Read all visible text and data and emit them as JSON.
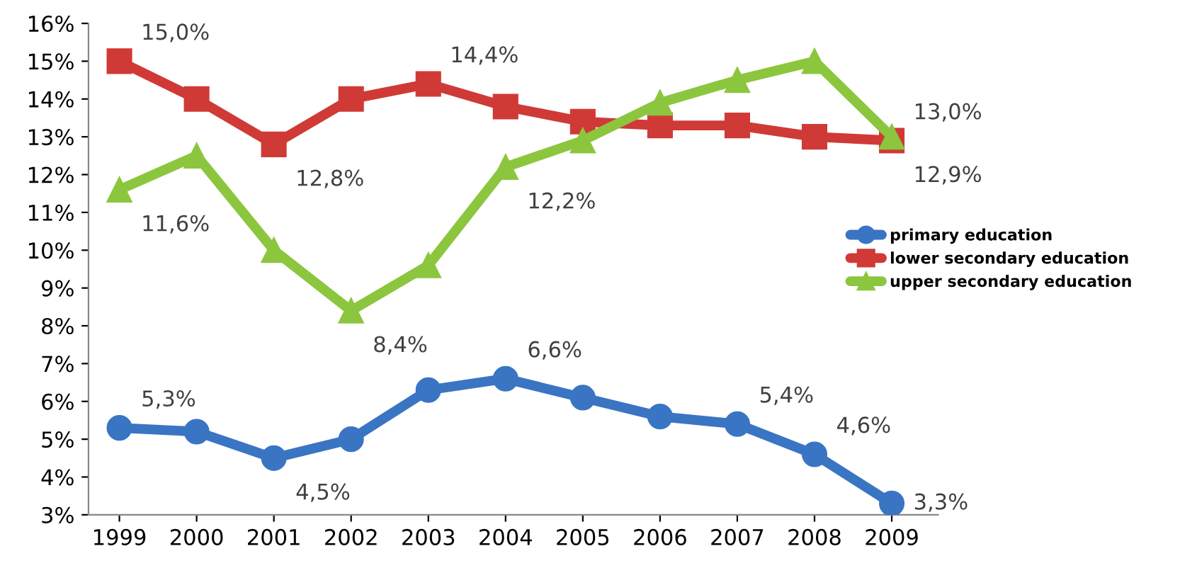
{
  "chart_data": {
    "type": "line",
    "categories": [
      "1999",
      "2000",
      "2001",
      "2002",
      "2003",
      "2004",
      "2005",
      "2006",
      "2007",
      "2008",
      "2009"
    ],
    "series": [
      {
        "name": "primary education",
        "color": "#3a75c4",
        "marker": "circle",
        "values": [
          5.3,
          5.2,
          4.5,
          5.0,
          6.3,
          6.6,
          6.1,
          5.6,
          5.4,
          4.6,
          3.3
        ],
        "value_labels": [
          "5,3%",
          null,
          "4,5%",
          null,
          null,
          "6,6%",
          null,
          null,
          "5,4%",
          "4,6%",
          "3,3%"
        ]
      },
      {
        "name": "lower secondary education",
        "color": "#d03a36",
        "marker": "square",
        "values": [
          15.0,
          14.0,
          12.8,
          14.0,
          14.4,
          13.8,
          13.4,
          13.3,
          13.3,
          13.0,
          12.9
        ],
        "value_labels": [
          "15,0%",
          null,
          "12,8%",
          null,
          "14,4%",
          null,
          null,
          null,
          null,
          null,
          "12,9%"
        ]
      },
      {
        "name": "upper secondary education",
        "color": "#8cc63e",
        "marker": "triangle",
        "values": [
          11.6,
          12.5,
          10.0,
          8.4,
          9.6,
          12.2,
          12.9,
          13.9,
          14.5,
          15.0,
          13.0
        ],
        "value_labels": [
          "11,6%",
          null,
          null,
          "8,4%",
          null,
          "12,2%",
          null,
          null,
          null,
          null,
          "13,0%"
        ]
      }
    ],
    "ylim": [
      3,
      16
    ],
    "yticks": [
      {
        "value": 3,
        "label": "3%"
      },
      {
        "value": 4,
        "label": "4%"
      },
      {
        "value": 5,
        "label": "5%"
      },
      {
        "value": 6,
        "label": "6%"
      },
      {
        "value": 7,
        "label": "7%"
      },
      {
        "value": 8,
        "label": "8%"
      },
      {
        "value": 9,
        "label": "9%"
      },
      {
        "value": 10,
        "label": "10%"
      },
      {
        "value": 11,
        "label": "11%"
      },
      {
        "value": 12,
        "label": "12%"
      },
      {
        "value": 13,
        "label": "13%"
      },
      {
        "value": 14,
        "label": "14%"
      },
      {
        "value": 15,
        "label": "15%"
      },
      {
        "value": 16,
        "label": "16%"
      }
    ],
    "grid": false,
    "legend": "right",
    "line_style": "solid"
  }
}
